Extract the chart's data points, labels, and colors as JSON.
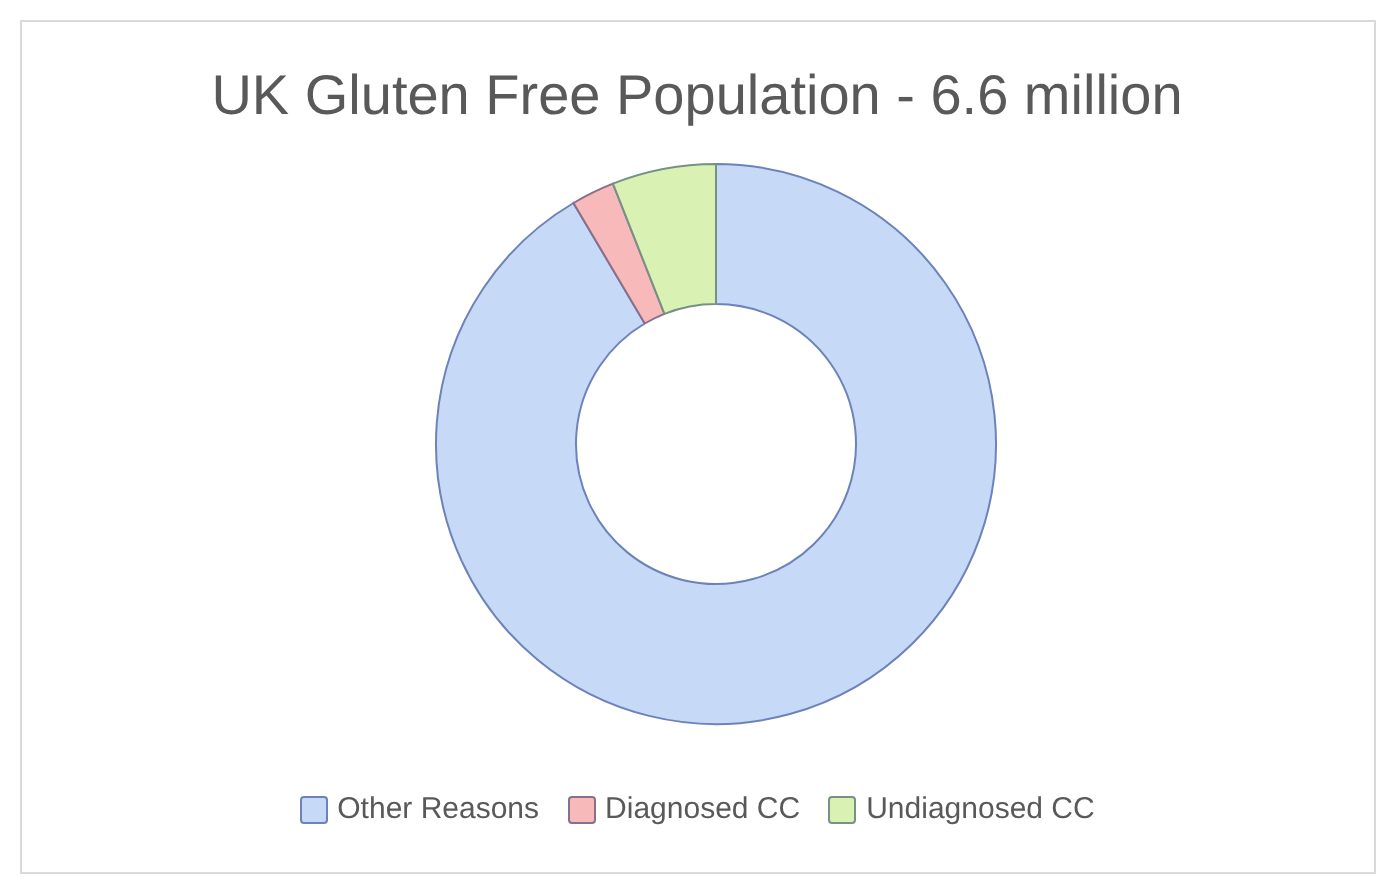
{
  "chart_data": {
    "type": "donut",
    "title": "UK Gluten Free Population - 6.6 million",
    "categories": [
      "Other Reasons",
      "Diagnosed CC",
      "Undiagnosed CC"
    ],
    "values": [
      91.5,
      2.5,
      6
    ],
    "colors": [
      "#c6d9f7",
      "#f7b9b9",
      "#d9f2b4"
    ],
    "legend": "bottom"
  }
}
